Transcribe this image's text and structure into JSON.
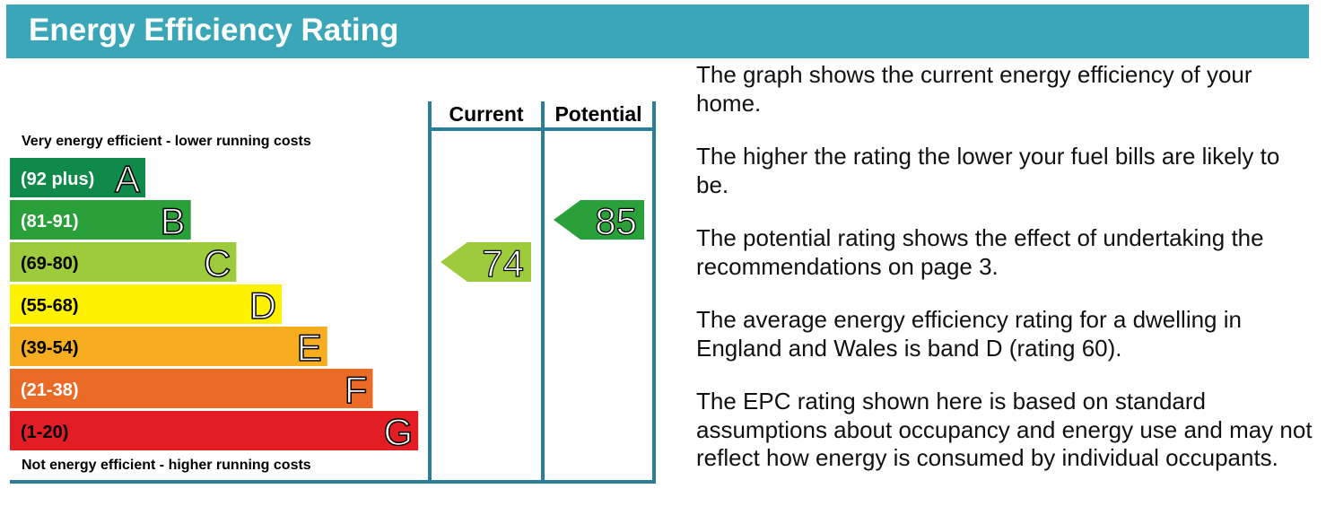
{
  "header": {
    "title": "Energy Efficiency Rating"
  },
  "top_label": "Very energy efficient - lower running costs",
  "bottom_label": "Not energy efficient - higher running costs",
  "columns": [
    "Current",
    "Potential"
  ],
  "bands": [
    {
      "range": "(92 plus)",
      "letter": "A",
      "color": "#0f8a4a",
      "text_color": "#ffffff"
    },
    {
      "range": "(81-91)",
      "letter": "B",
      "color": "#2aa03a",
      "text_color": "#ffffff"
    },
    {
      "range": "(69-80)",
      "letter": "C",
      "color": "#9dcb3c",
      "text_color": "#000000"
    },
    {
      "range": "(55-68)",
      "letter": "D",
      "color": "#fff200",
      "text_color": "#000000"
    },
    {
      "range": "(39-54)",
      "letter": "E",
      "color": "#f6ad20",
      "text_color": "#000000"
    },
    {
      "range": "(21-38)",
      "letter": "F",
      "color": "#eb6a25",
      "text_color": "#ffffff"
    },
    {
      "range": "(1-20)",
      "letter": "G",
      "color": "#e31d24",
      "text_color": "#000000"
    }
  ],
  "ratings": [
    74,
    85
  ],
  "paragraphs": [
    "The graph shows the current energy efficiency of your home.",
    "The higher the rating the lower your fuel bills are likely to be.",
    "The potential rating shows the effect of undertaking the recommendations on page 3.",
    "The average energy efficiency rating for a dwelling in England and Wales is band D (rating 60).",
    "The EPC rating shown here is based on standard assumptions about occupancy and energy use and may not reflect how energy is consumed by individual occupants."
  ]
}
